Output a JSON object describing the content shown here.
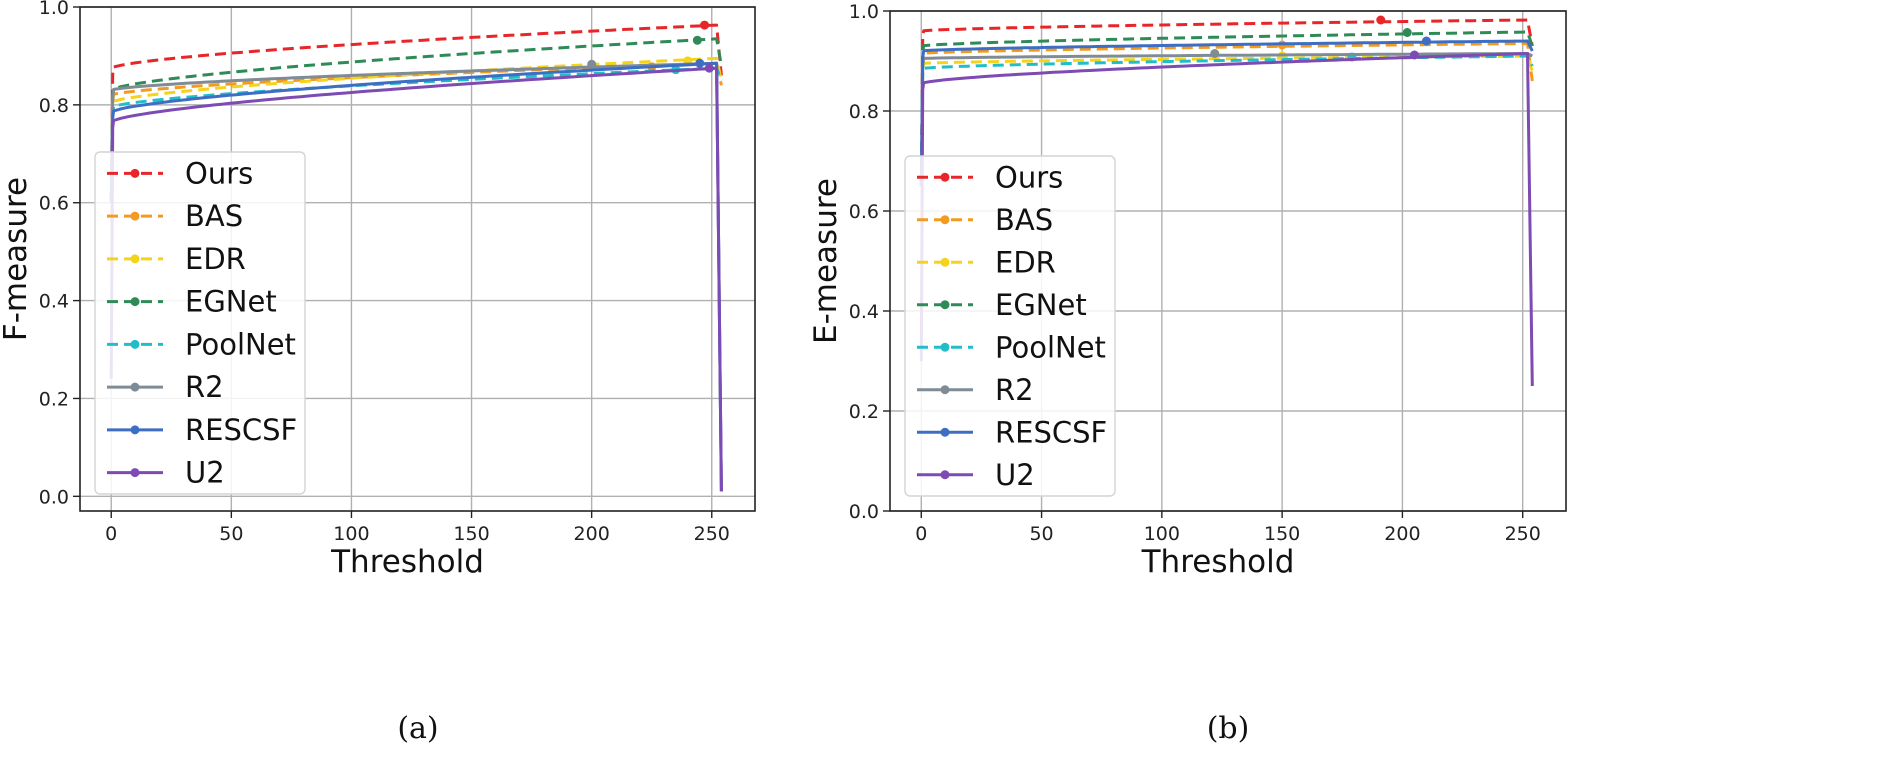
{
  "chart_data": [
    {
      "type": "line",
      "caption": "(a)",
      "xlabel": "Threshold",
      "ylabel": "F-measure",
      "xlim": [
        -13,
        268
      ],
      "ylim": [
        -0.03,
        1.0
      ],
      "x_ticks": [
        "0",
        "50",
        "100",
        "150",
        "200",
        "250"
      ],
      "y_ticks": [
        "0.0",
        "0.2",
        "0.4",
        "0.6",
        "0.8",
        "1.0"
      ],
      "grid": true,
      "legend_position": "center-left",
      "series": [
        {
          "name": "Ours",
          "color": "#e8262a",
          "dash": true,
          "start": 0.6,
          "first": 0.875,
          "end": 0.963,
          "drop": 0.86,
          "max_x": 247,
          "max_y": 0.963
        },
        {
          "name": "BAS",
          "color": "#f39b1e",
          "dash": true,
          "start": 0.6,
          "first": 0.82,
          "end": 0.885,
          "drop": 0.84,
          "max_x": 225,
          "max_y": 0.878
        },
        {
          "name": "EDR",
          "color": "#f5d31a",
          "dash": true,
          "start": 0.6,
          "first": 0.805,
          "end": 0.895,
          "drop": 0.85,
          "max_x": 240,
          "max_y": 0.89
        },
        {
          "name": "EGNet",
          "color": "#2e8b57",
          "dash": true,
          "start": 0.6,
          "first": 0.83,
          "end": 0.935,
          "drop": 0.88,
          "max_x": 244,
          "max_y": 0.932
        },
        {
          "name": "PoolNet",
          "color": "#20bec9",
          "dash": true,
          "start": 0.6,
          "first": 0.795,
          "end": 0.875,
          "drop": 0.85,
          "max_x": 235,
          "max_y": 0.872
        },
        {
          "name": "R2",
          "color": "#7f8c96",
          "dash": false,
          "start": 0.6,
          "first": 0.83,
          "end": 0.885,
          "drop": 0.01,
          "max_x": 200,
          "max_y": 0.883
        },
        {
          "name": "RESCSF",
          "color": "#3d6ec4",
          "dash": false,
          "start": 0.6,
          "first": 0.785,
          "end": 0.885,
          "drop": 0.01,
          "max_x": 245,
          "max_y": 0.885
        },
        {
          "name": "U2",
          "color": "#7d4bb3",
          "dash": false,
          "start": 0.24,
          "first": 0.765,
          "end": 0.875,
          "drop": 0.01,
          "max_x": 249,
          "max_y": 0.875
        }
      ]
    },
    {
      "type": "line",
      "caption": "(b)",
      "xlabel": "Threshold",
      "ylabel": "E-measure",
      "xlim": [
        -13,
        268
      ],
      "ylim": [
        0.0,
        1.0
      ],
      "x_ticks": [
        "0",
        "50",
        "100",
        "150",
        "200",
        "250"
      ],
      "y_ticks": [
        "0.0",
        "0.2",
        "0.4",
        "0.6",
        "0.8",
        "1.0"
      ],
      "grid": true,
      "legend_position": "center-left",
      "series": [
        {
          "name": "Ours",
          "color": "#e8262a",
          "dash": true,
          "start": 0.65,
          "first": 0.96,
          "end": 0.982,
          "drop": 0.93,
          "max_x": 191,
          "max_y": 0.982
        },
        {
          "name": "BAS",
          "color": "#f39b1e",
          "dash": true,
          "start": 0.65,
          "first": 0.915,
          "end": 0.935,
          "drop": 0.86,
          "max_x": 150,
          "max_y": 0.932
        },
        {
          "name": "EDR",
          "color": "#f5d31a",
          "dash": true,
          "start": 0.65,
          "first": 0.895,
          "end": 0.91,
          "drop": 0.88,
          "max_x": 150,
          "max_y": 0.91
        },
        {
          "name": "EGNet",
          "color": "#2e8b57",
          "dash": true,
          "start": 0.65,
          "first": 0.93,
          "end": 0.958,
          "drop": 0.93,
          "max_x": 202,
          "max_y": 0.957
        },
        {
          "name": "PoolNet",
          "color": "#20bec9",
          "dash": true,
          "start": 0.65,
          "first": 0.885,
          "end": 0.91,
          "drop": 0.89,
          "max_x": 179,
          "max_y": 0.908
        },
        {
          "name": "R2",
          "color": "#7f8c96",
          "dash": false,
          "start": 0.65,
          "first": 0.905,
          "end": 0.915,
          "drop": 0.91,
          "max_x": 122,
          "max_y": 0.915
        },
        {
          "name": "RESCSF",
          "color": "#3d6ec4",
          "dash": false,
          "start": 0.65,
          "first": 0.92,
          "end": 0.94,
          "drop": 0.92,
          "max_x": 210,
          "max_y": 0.94
        },
        {
          "name": "U2",
          "color": "#7d4bb3",
          "dash": false,
          "start": 0.3,
          "first": 0.855,
          "end": 0.915,
          "drop": 0.25,
          "max_x": 205,
          "max_y": 0.912
        }
      ]
    }
  ]
}
